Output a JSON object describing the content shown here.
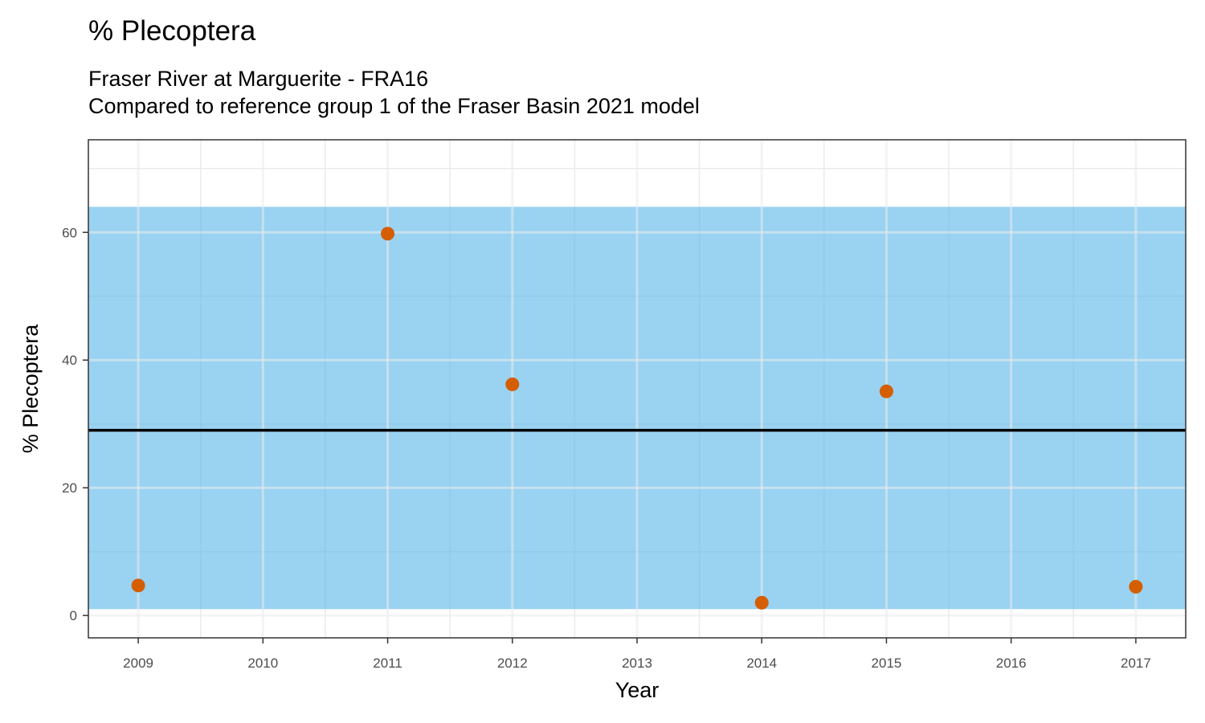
{
  "chart_data": {
    "type": "scatter",
    "title": "% Plecoptera",
    "subtitle": [
      "Fraser River at Marguerite - FRA16",
      "Compared to reference group 1 of the Fraser Basin 2021 model"
    ],
    "xlabel": "Year",
    "ylabel": "% Plecoptera",
    "x_ticks": [
      2009,
      2010,
      2011,
      2012,
      2013,
      2014,
      2015,
      2016,
      2017
    ],
    "y_ticks": [
      0,
      20,
      40,
      60
    ],
    "xlim": [
      2008.6,
      2017.4
    ],
    "ylim": [
      -3.5,
      74.5
    ],
    "grid": true,
    "reference_band": {
      "ymin": 1.0,
      "ymax": 64.0,
      "color": "#56B4E9"
    },
    "reference_line": {
      "y": 29.0,
      "color": "#000000"
    },
    "points": [
      {
        "x": 2009,
        "y": 4.7
      },
      {
        "x": 2011,
        "y": 59.8
      },
      {
        "x": 2012,
        "y": 36.2
      },
      {
        "x": 2014,
        "y": 2.0
      },
      {
        "x": 2015,
        "y": 35.1
      },
      {
        "x": 2017,
        "y": 4.5
      }
    ],
    "point_color": "#D55E00"
  }
}
